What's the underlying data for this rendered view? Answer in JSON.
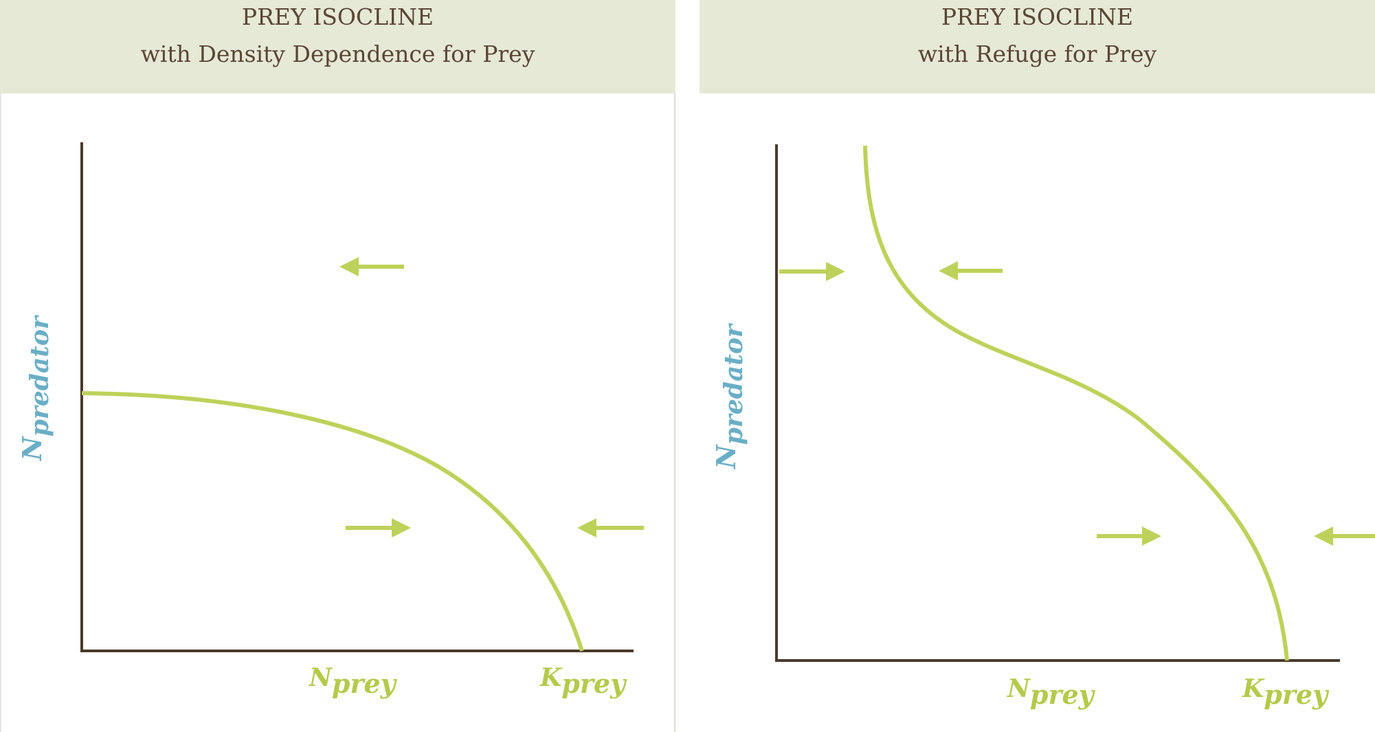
{
  "colors": {
    "header_bg": "#e6e9d6",
    "header_text": "#5a4636",
    "axis": "#4a3a2a",
    "curve": "#bcd25a",
    "predator_label": "#6aaec6",
    "prey_label": "#b5c94b"
  },
  "panels": [
    {
      "title_line1": "PREY ISOCLINE",
      "title_line2": "with Density Dependence for Prey",
      "y_label_main": "N",
      "y_label_sub": "predator",
      "x_label_main": "N",
      "x_label_sub": "prey",
      "k_label_main": "K",
      "k_label_sub": "prey"
    },
    {
      "title_line1": "PREY ISOCLINE",
      "title_line2": "with Refuge for Prey",
      "y_label_main": "N",
      "y_label_sub": "predator",
      "x_label_main": "N",
      "x_label_sub": "prey",
      "k_label_main": "K",
      "k_label_sub": "prey"
    }
  ]
}
